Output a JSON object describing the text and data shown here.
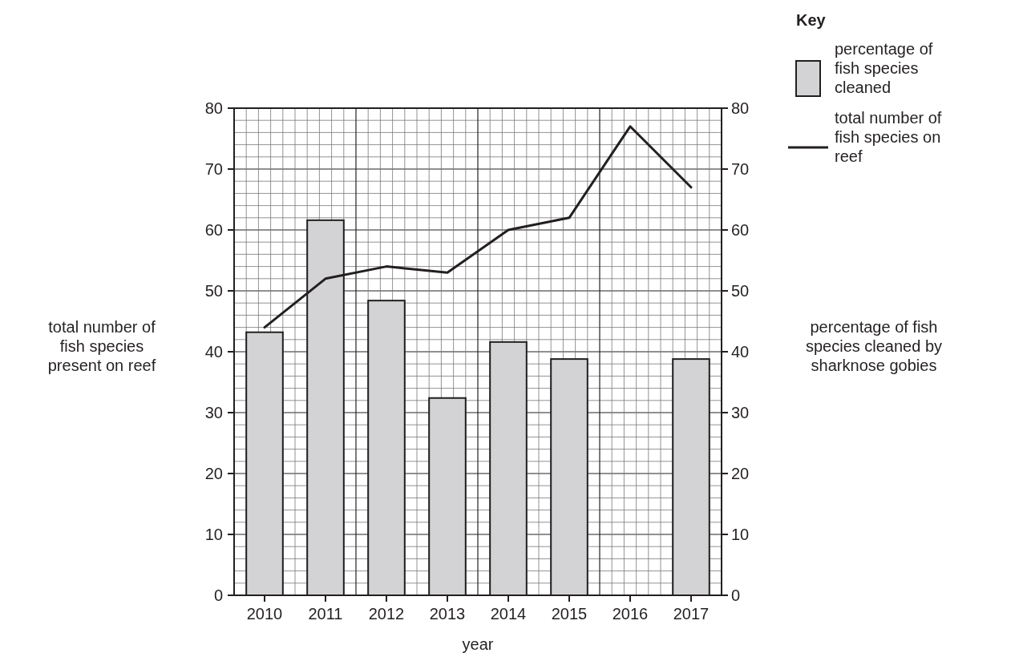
{
  "chart_data": {
    "type": "bar",
    "categories": [
      "2010",
      "2011",
      "2012",
      "2013",
      "2014",
      "2015",
      "2016",
      "2017"
    ],
    "series": [
      {
        "name": "percentage of fish species cleaned",
        "color": "#d3d3d5",
        "values": [
          43.2,
          61.6,
          48.4,
          32.4,
          41.6,
          38.8,
          null,
          38.8
        ]
      },
      {
        "name": "total number of fish species on reef",
        "type": "line",
        "color": "#231f20",
        "values": [
          44,
          52,
          54,
          53,
          60,
          62,
          77,
          67
        ]
      }
    ],
    "xlabel": "year",
    "ylabel": "total number of fish species present on reef",
    "y2label": "percentage of fish species cleaned by sharknose gobies",
    "legend_title": "Key",
    "ylim": [
      0,
      80
    ],
    "yticks": [
      0,
      {
        "value": 2,
        "label": null
      },
      {
        "value": 4,
        "label": null
      },
      {
        "value": 6,
        "label": null
      },
      {
        "value": 8,
        "label": null
      },
      10,
      {
        "value": 12,
        "label": null
      },
      {
        "value": 14,
        "label": null
      },
      {
        "value": 16,
        "label": null
      },
      {
        "value": 18,
        "label": null
      },
      20,
      {
        "value": 22,
        "label": null
      },
      {
        "value": 24,
        "label": null
      },
      {
        "value": 26,
        "label": null
      },
      {
        "value": 28,
        "label": null
      },
      30,
      {
        "value": 32,
        "label": null
      },
      {
        "value": 34,
        "label": null
      },
      {
        "value": 36,
        "label": null
      },
      {
        "value": 38,
        "label": null
      },
      40,
      {
        "value": 42,
        "label": null
      },
      {
        "value": 44,
        "label": null
      },
      {
        "value": 46,
        "label": null
      },
      {
        "value": 48,
        "label": null
      },
      50,
      {
        "value": 52,
        "label": null
      },
      {
        "value": 54,
        "label": null
      },
      {
        "value": 56,
        "label": null
      },
      {
        "value": 58,
        "label": null
      },
      60,
      {
        "value": 62,
        "label": null
      },
      {
        "value": 64,
        "label": null
      },
      {
        "value": 66,
        "label": null
      },
      {
        "value": 68,
        "label": null
      },
      70,
      {
        "value": 72,
        "label": null
      },
      {
        "value": 74,
        "label": null
      },
      {
        "value": 76,
        "label": null
      },
      {
        "value": 78,
        "label": null
      },
      80
    ],
    "y2lim": [
      0,
      80
    ],
    "y2ticks": [
      0,
      10,
      20,
      30,
      40,
      50,
      60,
      70,
      80
    ],
    "grid": true,
    "legend": "top right",
    "line_style": "solid",
    "marker": "none"
  }
}
